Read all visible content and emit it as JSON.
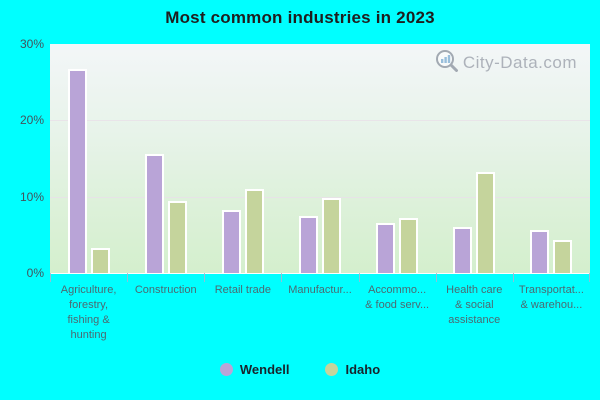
{
  "page": {
    "background_color": "#00ffff"
  },
  "title": "Most common industries in 2023",
  "watermark": {
    "text": "City-Data.com",
    "icon": "magnifier-bars-icon",
    "color": "#a6abb4"
  },
  "legend": [
    {
      "label": "Wendell",
      "color": "#b9a4d7"
    },
    {
      "label": "Idaho",
      "color": "#c5d49c"
    }
  ],
  "chart_data": {
    "type": "bar",
    "title": "Most common industries in 2023",
    "categories": [
      "Agriculture, forestry, fishing & hunting",
      "Construction",
      "Retail trade",
      "Manufactur...",
      "Accommo... & food serv...",
      "Health care & social assistance",
      "Transportat... & warehou..."
    ],
    "categories_display": [
      "Agriculture,\nforestry,\nfishing &\nhunting",
      "Construction",
      "Retail trade",
      "Manufactur...",
      "Accommo...\n& food serv...",
      "Health care\n& social\nassistance",
      "Transportat...\n& warehou..."
    ],
    "series": [
      {
        "name": "Wendell",
        "color": "#b9a4d7",
        "values": [
          26.4,
          15.3,
          8.0,
          7.2,
          6.3,
          5.8,
          5.4
        ]
      },
      {
        "name": "Idaho",
        "color": "#c5d49c",
        "values": [
          3.0,
          9.2,
          10.8,
          9.6,
          6.9,
          13.0,
          4.0
        ]
      }
    ],
    "ylabel": "",
    "xlabel": "",
    "ylim": [
      0,
      30
    ],
    "yticks": [
      "30%",
      "20%",
      "10%",
      "0%"
    ],
    "grid": "horizontal",
    "legend_position": "bottom"
  }
}
